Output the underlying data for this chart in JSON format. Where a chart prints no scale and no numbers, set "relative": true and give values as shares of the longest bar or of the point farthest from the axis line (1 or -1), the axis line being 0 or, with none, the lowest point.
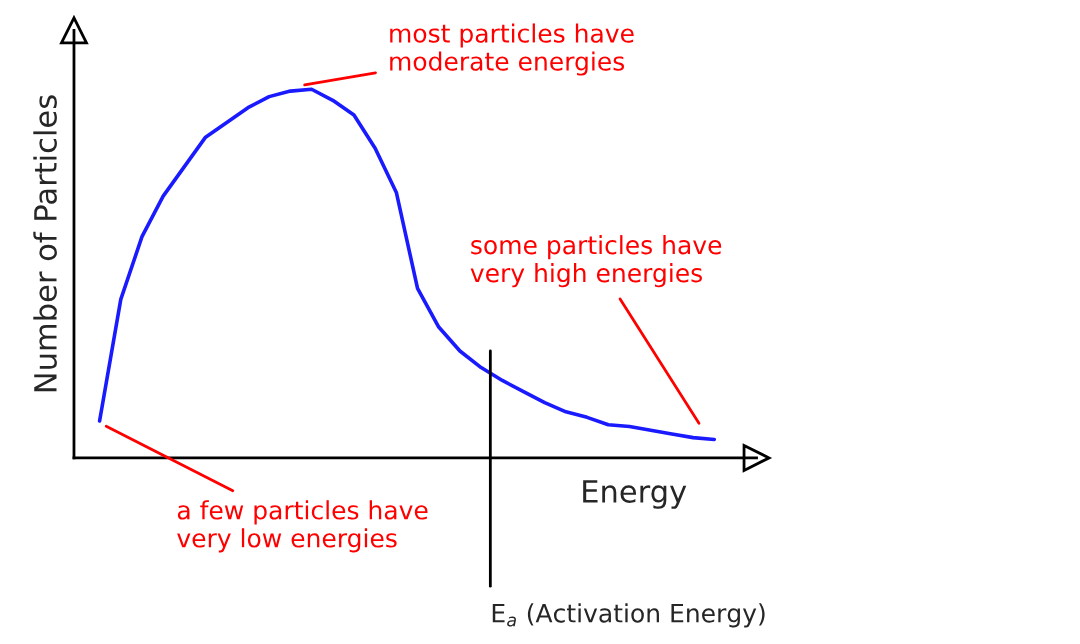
{
  "chart_data": {
    "type": "line",
    "relative": true,
    "xlabel": "Energy",
    "ylabel": "Number of Particles",
    "marker": "none",
    "line_style": "solid",
    "categories": [
      null,
      null,
      null,
      null,
      null,
      null,
      null,
      null,
      null,
      null,
      null,
      null,
      null,
      null,
      null,
      null,
      null,
      null,
      null,
      null,
      null,
      null,
      null,
      null,
      null,
      null,
      null,
      null,
      null,
      null
    ],
    "series": [
      {
        "color": "#1a1aff",
        "values": [
          0.1,
          0.43,
          0.6,
          0.71,
          0.79,
          0.87,
          0.91,
          0.95,
          0.98,
          0.995,
          1.0,
          0.97,
          0.93,
          0.84,
          0.72,
          0.46,
          0.355,
          0.29,
          0.245,
          0.21,
          0.18,
          0.15,
          0.125,
          0.11,
          0.09,
          0.085,
          0.075,
          0.065,
          0.055,
          0.05
        ]
      }
    ],
    "annotations": [
      "most particles have\nmoderate energies",
      "some particles have\nvery high energies",
      "a few particles have\nvery low energies",
      "E$_{a}$ (Activation Energy)"
    ]
  }
}
